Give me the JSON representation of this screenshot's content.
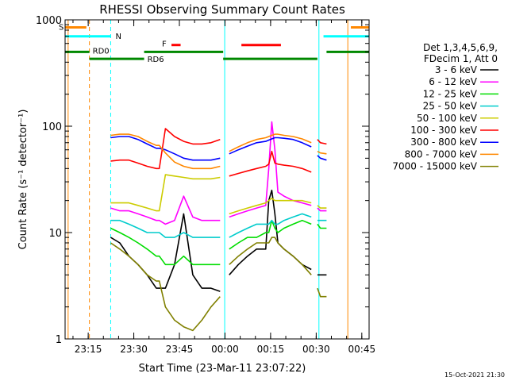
{
  "chart_data": {
    "type": "line",
    "title": "RHESSI Observing Summary Count Rates",
    "xlabel": "Start Time (23-Mar-11 23:07:22)",
    "ylabel": "Count Rate (s⁻¹ detector⁻¹)",
    "yscale": "log",
    "ylim": [
      1,
      1000
    ],
    "xlim_minutes": [
      0,
      100
    ],
    "x_tick_labels": [
      "23:15",
      "23:30",
      "23:45",
      "00:00",
      "00:15",
      "00:30",
      "00:45"
    ],
    "x_tick_minutes": [
      7.6,
      22.6,
      37.6,
      52.6,
      67.6,
      82.6,
      97.6
    ],
    "y_tick_labels": [
      "1",
      "10",
      "100",
      "1000"
    ],
    "y_tick_values": [
      1,
      10,
      100,
      1000
    ],
    "legend_position": "right",
    "legend_header": [
      "Det 1,3,4,5,6,9,",
      "FDecim 1, Att 0"
    ],
    "timestamp": "15-Oct-2021 21:30",
    "x": [
      3,
      6,
      9,
      12,
      15,
      18,
      21,
      24,
      27,
      30,
      31,
      33,
      36,
      39,
      42,
      45,
      48,
      51,
      52,
      54,
      57,
      60,
      63,
      66,
      67,
      68,
      69,
      70,
      72,
      75,
      78,
      81,
      82,
      83,
      84,
      86
    ],
    "series": [
      {
        "name": "3 - 6 keV",
        "color": "#000000",
        "values": [
          null,
          null,
          null,
          null,
          9,
          8,
          6,
          5,
          4,
          3,
          3,
          3,
          5,
          15,
          4,
          3,
          3,
          2.8,
          null,
          4,
          5,
          6,
          7,
          7,
          20,
          25,
          15,
          8,
          7,
          6,
          5,
          4.5,
          null,
          4,
          4,
          4
        ]
      },
      {
        "name": "6 - 12 keV",
        "color": "#ff00ff",
        "values": [
          null,
          null,
          null,
          null,
          17,
          16,
          16,
          15,
          14,
          13,
          13,
          12,
          13,
          22,
          14,
          13,
          13,
          13,
          null,
          14,
          15,
          16,
          17,
          18,
          40,
          110,
          60,
          24,
          22,
          20,
          19,
          18,
          null,
          17,
          16,
          16
        ]
      },
      {
        "name": "12 - 25 keV",
        "color": "#00dd00",
        "values": [
          null,
          null,
          null,
          null,
          11,
          10,
          9,
          8,
          7,
          6,
          6,
          5,
          5,
          6,
          5,
          5,
          5,
          5,
          null,
          7,
          8,
          9,
          9,
          10,
          10,
          13,
          11,
          10,
          11,
          12,
          13,
          12,
          null,
          12,
          11,
          11
        ]
      },
      {
        "name": "25 - 50 keV",
        "color": "#00cccc",
        "values": [
          null,
          null,
          null,
          null,
          13,
          13,
          12,
          11,
          10,
          10,
          10,
          9,
          9,
          10,
          9,
          9,
          9,
          9,
          null,
          9,
          10,
          11,
          12,
          12,
          12,
          13,
          12,
          12,
          13,
          14,
          15,
          14,
          null,
          13,
          13,
          13
        ]
      },
      {
        "name": "50 - 100 keV",
        "color": "#cccc00",
        "values": [
          null,
          null,
          null,
          null,
          19,
          19,
          19,
          18,
          17,
          16,
          16,
          35,
          34,
          33,
          32,
          32,
          32,
          33,
          null,
          15,
          16,
          17,
          18,
          19,
          20,
          21,
          20,
          20,
          20,
          20,
          20,
          19,
          null,
          18,
          17,
          17
        ]
      },
      {
        "name": "100 - 300 keV",
        "color": "#ff0000",
        "values": [
          null,
          null,
          null,
          null,
          47,
          48,
          48,
          45,
          42,
          40,
          40,
          95,
          80,
          72,
          68,
          68,
          70,
          75,
          null,
          34,
          36,
          38,
          40,
          42,
          44,
          58,
          45,
          44,
          43,
          42,
          40,
          37,
          null,
          75,
          70,
          68
        ]
      },
      {
        "name": "300 - 800 keV",
        "color": "#0000ff",
        "values": [
          null,
          null,
          null,
          null,
          78,
          80,
          80,
          75,
          68,
          62,
          62,
          60,
          55,
          50,
          48,
          48,
          48,
          50,
          null,
          55,
          60,
          65,
          70,
          72,
          74,
          76,
          78,
          78,
          77,
          75,
          70,
          64,
          null,
          53,
          50,
          48
        ]
      },
      {
        "name": "800 - 7000 keV",
        "color": "#ff8800",
        "values": [
          null,
          null,
          null,
          null,
          82,
          84,
          84,
          80,
          72,
          66,
          66,
          56,
          46,
          42,
          40,
          40,
          40,
          42,
          null,
          58,
          64,
          70,
          75,
          78,
          80,
          82,
          84,
          84,
          82,
          80,
          76,
          70,
          null,
          58,
          56,
          55
        ]
      },
      {
        "name": "7000 - 15000 keV",
        "color": "#808000",
        "values": [
          null,
          null,
          null,
          null,
          8,
          7,
          6,
          5,
          4,
          3.5,
          3.5,
          2,
          1.5,
          1.3,
          1.2,
          1.5,
          2,
          2.5,
          null,
          5,
          6,
          7,
          8,
          8,
          8,
          9,
          9,
          8,
          7,
          6,
          5,
          4,
          null,
          3,
          2.5,
          2.5
        ]
      }
    ],
    "state_bars": [
      {
        "label": "S",
        "color": "#ff8800",
        "start": 0,
        "end": 7,
        "level": 850
      },
      {
        "label": "",
        "color": "#ff8800",
        "start": 94,
        "end": 100,
        "level": 850
      },
      {
        "label": "N",
        "color": "#00ffff",
        "start": 0,
        "end": 15,
        "level": 700
      },
      {
        "label": "",
        "color": "#00ffff",
        "start": 85,
        "end": 100,
        "level": 700
      },
      {
        "label": "F",
        "color": "#ff0000",
        "start": 35,
        "end": 38,
        "level": 580
      },
      {
        "label": "",
        "color": "#ff0000",
        "start": 58,
        "end": 71,
        "level": 580
      },
      {
        "label": "RD0",
        "color": "#008800",
        "start": 0,
        "end": 8,
        "level": 500
      },
      {
        "label": "",
        "color": "#008800",
        "start": 26,
        "end": 52,
        "level": 500
      },
      {
        "label": "",
        "color": "#008800",
        "start": 86,
        "end": 100,
        "level": 500
      },
      {
        "label": "RD6",
        "color": "#008800",
        "start": 8,
        "end": 26,
        "level": 430
      },
      {
        "label": "",
        "color": "#008800",
        "start": 52,
        "end": 83,
        "level": 430
      }
    ],
    "vertical_markers": [
      {
        "minute": 1,
        "color": "#ff8800",
        "dashed": false
      },
      {
        "minute": 8,
        "color": "#ff8800",
        "dashed": true
      },
      {
        "minute": 15,
        "color": "#00ffff",
        "dashed": true
      },
      {
        "minute": 52.5,
        "color": "#00ffff",
        "dashed": false
      },
      {
        "minute": 83.5,
        "color": "#00ffff",
        "dashed": false
      },
      {
        "minute": 93,
        "color": "#ff8800",
        "dashed": false
      },
      {
        "minute": 100,
        "color": "#00ffff",
        "dashed": true
      }
    ]
  }
}
